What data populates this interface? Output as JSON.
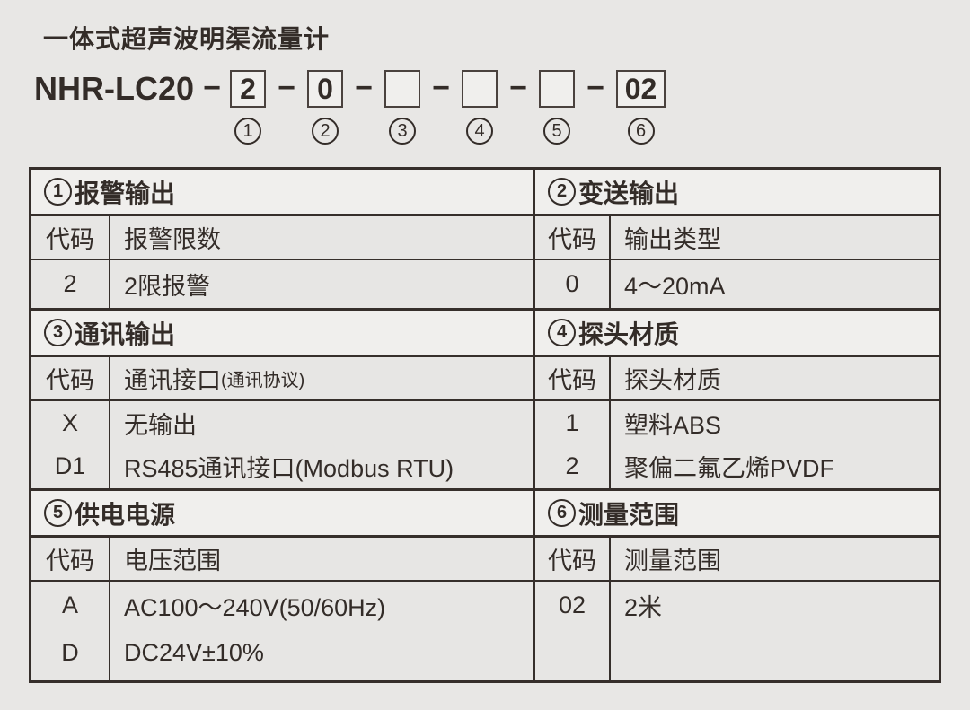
{
  "title": "一体式超声波明渠流量计",
  "model": {
    "prefix": "NHR-LC20",
    "separator": "−",
    "slots": [
      {
        "value": "2",
        "index": "1"
      },
      {
        "value": "0",
        "index": "2"
      },
      {
        "value": "",
        "index": "3"
      },
      {
        "value": "",
        "index": "4"
      },
      {
        "value": "",
        "index": "5"
      },
      {
        "value": "02",
        "index": "6"
      }
    ]
  },
  "code_header": "代码",
  "sections": [
    {
      "number": "1",
      "title": "报警输出",
      "col_header": "报警限数",
      "col_note": "",
      "rows": [
        {
          "code": "2",
          "desc": "2限报警"
        }
      ]
    },
    {
      "number": "2",
      "title": "变送输出",
      "col_header": "输出类型",
      "col_note": "",
      "rows": [
        {
          "code": "0",
          "desc": "4～20mA"
        }
      ]
    },
    {
      "number": "3",
      "title": "通讯输出",
      "col_header": "通讯接口",
      "col_note": "(通讯协议)",
      "rows": [
        {
          "code": "X",
          "desc": "无输出"
        },
        {
          "code": "D1",
          "desc": "RS485通讯接口(Modbus RTU)"
        }
      ]
    },
    {
      "number": "4",
      "title": "探头材质",
      "col_header": "探头材质",
      "col_note": "",
      "rows": [
        {
          "code": "1",
          "desc": "塑料ABS"
        },
        {
          "code": "2",
          "desc": "聚偏二氟乙烯PVDF"
        }
      ]
    },
    {
      "number": "5",
      "title": "供电电源",
      "col_header": "电压范围",
      "col_note": "",
      "rows": [
        {
          "code": "A",
          "desc": "AC100～240V(50/60Hz)"
        },
        {
          "code": "D",
          "desc": "DC24V±10%"
        }
      ]
    },
    {
      "number": "6",
      "title": "测量范围",
      "col_header": "测量范围",
      "col_note": "",
      "rows": [
        {
          "code": "02",
          "desc": "2米"
        }
      ]
    }
  ],
  "colors": {
    "page_bg": "#e8e7e5",
    "section_header_bg": "#f0efed",
    "cell_bg": "#e7e6e4",
    "ink": "#332c28",
    "border": "#362f2b"
  }
}
